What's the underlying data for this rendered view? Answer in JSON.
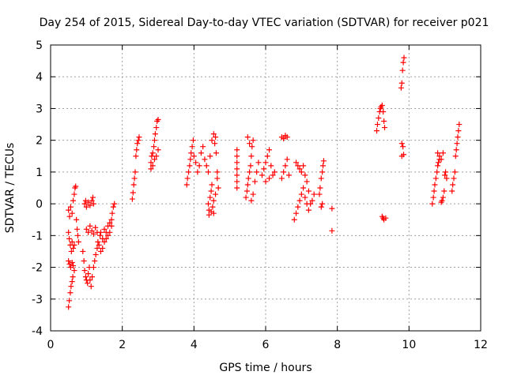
{
  "chart_data": {
    "type": "scatter",
    "title": "Day 254 of 2015, Sidereal Day-to-day VTEC variation (SDTVAR) for receiver p021",
    "xlabel": "GPS time / hours",
    "ylabel": "SDTVAR / TECUs",
    "xlim": [
      0,
      12
    ],
    "ylim": [
      -4,
      5
    ],
    "x_ticks": [
      0,
      2,
      4,
      6,
      8,
      10,
      12
    ],
    "y_ticks": [
      -4,
      -3,
      -2,
      -1,
      0,
      1,
      2,
      3,
      4,
      5
    ],
    "grid": true,
    "marker": "plus",
    "color": "#ff0000",
    "series": [
      {
        "name": "p021",
        "points": [
          [
            0.5,
            -3.25
          ],
          [
            0.52,
            -3.05
          ],
          [
            0.55,
            -2.8
          ],
          [
            0.57,
            -2.6
          ],
          [
            0.6,
            -2.45
          ],
          [
            0.62,
            -2.3
          ],
          [
            0.5,
            -1.8
          ],
          [
            0.53,
            -1.9
          ],
          [
            0.56,
            -2.0
          ],
          [
            0.6,
            -1.85
          ],
          [
            0.63,
            -1.95
          ],
          [
            0.66,
            -2.1
          ],
          [
            0.5,
            -0.9
          ],
          [
            0.52,
            -1.1
          ],
          [
            0.55,
            -1.3
          ],
          [
            0.58,
            -1.5
          ],
          [
            0.6,
            -1.2
          ],
          [
            0.63,
            -1.4
          ],
          [
            0.66,
            -1.3
          ],
          [
            0.5,
            -0.2
          ],
          [
            0.53,
            -0.4
          ],
          [
            0.56,
            -0.1
          ],
          [
            0.6,
            -0.3
          ],
          [
            0.63,
            0.1
          ],
          [
            0.66,
            0.3
          ],
          [
            0.68,
            0.5
          ],
          [
            0.7,
            0.55
          ],
          [
            0.72,
            -0.5
          ],
          [
            0.74,
            -0.8
          ],
          [
            0.76,
            -1.0
          ],
          [
            0.78,
            -1.2
          ],
          [
            0.9,
            -1.5
          ],
          [
            0.93,
            -1.8
          ],
          [
            0.95,
            -2.1
          ],
          [
            0.98,
            -2.3
          ],
          [
            1.0,
            -2.4
          ],
          [
            1.03,
            -2.5
          ],
          [
            1.05,
            -2.2
          ],
          [
            1.08,
            -2.0
          ],
          [
            1.1,
            -2.4
          ],
          [
            1.13,
            -2.6
          ],
          [
            1.16,
            -2.3
          ],
          [
            1.2,
            -2.0
          ],
          [
            1.23,
            -1.8
          ],
          [
            1.26,
            -1.6
          ],
          [
            1.3,
            -1.4
          ],
          [
            1.32,
            -1.2
          ],
          [
            1.35,
            -1.3
          ],
          [
            1.38,
            -1.0
          ],
          [
            1.4,
            -0.9
          ],
          [
            1.45,
            -1.1
          ],
          [
            1.5,
            -0.8
          ],
          [
            1.55,
            -0.9
          ],
          [
            1.6,
            -0.7
          ],
          [
            1.65,
            -0.6
          ],
          [
            1.7,
            -0.5
          ],
          [
            1.72,
            -0.3
          ],
          [
            1.75,
            -0.1
          ],
          [
            1.78,
            0.0
          ],
          [
            1.0,
            -0.8
          ],
          [
            1.05,
            -0.9
          ],
          [
            1.1,
            -0.7
          ],
          [
            1.15,
            -0.85
          ],
          [
            1.2,
            -0.95
          ],
          [
            1.25,
            -0.75
          ],
          [
            1.3,
            -0.9
          ],
          [
            0.95,
            0.0
          ],
          [
            0.98,
            0.1
          ],
          [
            1.0,
            -0.1
          ],
          [
            1.05,
            0.05
          ],
          [
            1.1,
            -0.05
          ],
          [
            1.15,
            0.1
          ],
          [
            1.18,
            0.2
          ],
          [
            1.2,
            0.0
          ],
          [
            1.4,
            -1.5
          ],
          [
            1.45,
            -1.4
          ],
          [
            1.5,
            -1.2
          ],
          [
            1.55,
            -1.1
          ],
          [
            1.6,
            -1.0
          ],
          [
            1.65,
            -0.9
          ],
          [
            1.7,
            -0.7
          ],
          [
            2.28,
            0.15
          ],
          [
            2.3,
            0.35
          ],
          [
            2.32,
            0.6
          ],
          [
            2.34,
            0.8
          ],
          [
            2.36,
            1.0
          ],
          [
            2.38,
            1.5
          ],
          [
            2.4,
            1.7
          ],
          [
            2.42,
            1.9
          ],
          [
            2.45,
            2.0
          ],
          [
            2.47,
            2.1
          ],
          [
            2.8,
            1.3
          ],
          [
            2.82,
            1.5
          ],
          [
            2.85,
            1.6
          ],
          [
            2.88,
            1.8
          ],
          [
            2.9,
            2.0
          ],
          [
            2.92,
            2.2
          ],
          [
            2.95,
            2.4
          ],
          [
            2.97,
            2.6
          ],
          [
            3.0,
            2.65
          ],
          [
            2.8,
            1.1
          ],
          [
            2.85,
            1.2
          ],
          [
            2.9,
            1.4
          ],
          [
            2.95,
            1.5
          ],
          [
            3.0,
            1.7
          ],
          [
            3.8,
            0.6
          ],
          [
            3.82,
            0.8
          ],
          [
            3.85,
            1.0
          ],
          [
            3.88,
            1.2
          ],
          [
            3.9,
            1.4
          ],
          [
            3.92,
            1.6
          ],
          [
            3.95,
            1.8
          ],
          [
            3.98,
            2.0
          ],
          [
            4.0,
            1.5
          ],
          [
            4.05,
            1.3
          ],
          [
            4.1,
            1.0
          ],
          [
            4.15,
            1.2
          ],
          [
            4.2,
            1.6
          ],
          [
            4.25,
            1.8
          ],
          [
            4.3,
            1.4
          ],
          [
            4.35,
            1.2
          ],
          [
            4.4,
            0.0
          ],
          [
            4.42,
            -0.2
          ],
          [
            4.45,
            0.2
          ],
          [
            4.48,
            0.4
          ],
          [
            4.5,
            0.6
          ],
          [
            4.52,
            -0.1
          ],
          [
            4.55,
            0.1
          ],
          [
            4.4,
            1.0
          ],
          [
            4.45,
            1.5
          ],
          [
            4.5,
            2.0
          ],
          [
            4.55,
            2.2
          ],
          [
            4.58,
            1.9
          ],
          [
            4.6,
            2.1
          ],
          [
            4.62,
            1.6
          ],
          [
            4.65,
            1.0
          ],
          [
            4.68,
            0.5
          ],
          [
            4.42,
            -0.35
          ],
          [
            4.48,
            -0.25
          ],
          [
            4.55,
            -0.3
          ],
          [
            4.6,
            0.3
          ],
          [
            4.65,
            0.8
          ],
          [
            5.2,
            0.7
          ],
          [
            5.2,
            0.9
          ],
          [
            5.2,
            1.1
          ],
          [
            5.2,
            1.3
          ],
          [
            5.2,
            1.5
          ],
          [
            5.2,
            1.7
          ],
          [
            5.2,
            0.5
          ],
          [
            5.45,
            0.2
          ],
          [
            5.48,
            0.4
          ],
          [
            5.5,
            0.6
          ],
          [
            5.52,
            0.8
          ],
          [
            5.55,
            1.0
          ],
          [
            5.58,
            1.2
          ],
          [
            5.6,
            1.5
          ],
          [
            5.62,
            1.8
          ],
          [
            5.65,
            2.0
          ],
          [
            5.5,
            2.1
          ],
          [
            5.55,
            1.9
          ],
          [
            5.6,
            0.1
          ],
          [
            5.65,
            0.3
          ],
          [
            5.7,
            0.7
          ],
          [
            5.75,
            1.0
          ],
          [
            5.8,
            1.3
          ],
          [
            5.9,
            0.9
          ],
          [
            5.95,
            1.1
          ],
          [
            6.0,
            1.3
          ],
          [
            6.05,
            1.5
          ],
          [
            6.1,
            1.7
          ],
          [
            6.15,
            1.2
          ],
          [
            6.2,
            0.9
          ],
          [
            6.25,
            1.0
          ],
          [
            6.0,
            0.7
          ],
          [
            6.1,
            0.8
          ],
          [
            6.45,
            2.1
          ],
          [
            6.5,
            2.05
          ],
          [
            6.55,
            2.15
          ],
          [
            6.6,
            2.1
          ],
          [
            6.45,
            0.8
          ],
          [
            6.5,
            1.0
          ],
          [
            6.55,
            1.2
          ],
          [
            6.6,
            1.4
          ],
          [
            6.65,
            0.9
          ],
          [
            6.8,
            -0.5
          ],
          [
            6.85,
            -0.3
          ],
          [
            6.9,
            -0.1
          ],
          [
            6.95,
            0.1
          ],
          [
            7.0,
            0.3
          ],
          [
            7.05,
            0.5
          ],
          [
            7.1,
            0.2
          ],
          [
            7.15,
            0.0
          ],
          [
            7.2,
            -0.2
          ],
          [
            6.85,
            1.3
          ],
          [
            6.9,
            1.2
          ],
          [
            6.95,
            1.1
          ],
          [
            7.0,
            1.0
          ],
          [
            7.05,
            1.2
          ],
          [
            7.1,
            0.9
          ],
          [
            7.15,
            0.7
          ],
          [
            7.2,
            0.4
          ],
          [
            7.25,
            0.0
          ],
          [
            7.3,
            0.1
          ],
          [
            7.35,
            0.3
          ],
          [
            7.5,
            0.3
          ],
          [
            7.52,
            0.5
          ],
          [
            7.55,
            0.8
          ],
          [
            7.58,
            1.0
          ],
          [
            7.6,
            1.2
          ],
          [
            7.62,
            1.35
          ],
          [
            7.55,
            -0.1
          ],
          [
            7.58,
            0.0
          ],
          [
            7.85,
            -0.15
          ],
          [
            7.85,
            -0.85
          ],
          [
            9.1,
            2.3
          ],
          [
            9.12,
            2.5
          ],
          [
            9.15,
            2.7
          ],
          [
            9.18,
            2.9
          ],
          [
            9.2,
            3.0
          ],
          [
            9.22,
            3.05
          ],
          [
            9.25,
            3.1
          ],
          [
            9.28,
            2.9
          ],
          [
            9.3,
            2.6
          ],
          [
            9.32,
            2.4
          ],
          [
            9.25,
            -0.4
          ],
          [
            9.28,
            -0.45
          ],
          [
            9.3,
            -0.5
          ],
          [
            9.35,
            -0.45
          ],
          [
            9.78,
            3.65
          ],
          [
            9.8,
            3.8
          ],
          [
            9.82,
            4.2
          ],
          [
            9.84,
            4.45
          ],
          [
            9.86,
            4.6
          ],
          [
            9.8,
            1.9
          ],
          [
            9.83,
            1.8
          ],
          [
            9.8,
            1.5
          ],
          [
            9.85,
            1.55
          ],
          [
            10.65,
            0.0
          ],
          [
            10.68,
            0.2
          ],
          [
            10.7,
            0.4
          ],
          [
            10.72,
            0.6
          ],
          [
            10.75,
            0.8
          ],
          [
            10.78,
            1.0
          ],
          [
            10.8,
            1.2
          ],
          [
            10.82,
            1.3
          ],
          [
            10.85,
            1.4
          ],
          [
            10.9,
            0.05
          ],
          [
            10.92,
            0.1
          ],
          [
            10.95,
            0.2
          ],
          [
            10.98,
            0.4
          ],
          [
            11.0,
            0.9
          ],
          [
            11.02,
            1.0
          ],
          [
            11.05,
            0.8
          ],
          [
            10.8,
            1.6
          ],
          [
            10.85,
            1.5
          ],
          [
            10.9,
            1.4
          ],
          [
            10.95,
            1.6
          ],
          [
            11.2,
            0.4
          ],
          [
            11.22,
            0.6
          ],
          [
            11.25,
            0.8
          ],
          [
            11.28,
            1.0
          ],
          [
            11.3,
            1.5
          ],
          [
            11.32,
            1.7
          ],
          [
            11.34,
            1.9
          ],
          [
            11.36,
            2.1
          ],
          [
            11.38,
            2.3
          ],
          [
            11.4,
            2.5
          ]
        ]
      }
    ]
  }
}
